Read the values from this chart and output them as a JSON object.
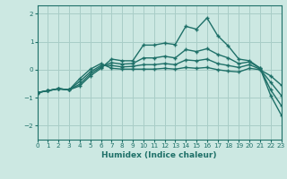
{
  "background_color": "#cce8e2",
  "grid_color": "#a8cdc7",
  "line_color": "#1e7068",
  "xlabel": "Humidex (Indice chaleur)",
  "xlim": [
    0,
    23
  ],
  "ylim": [
    -2.5,
    2.3
  ],
  "yticks": [
    -2,
    -1,
    0,
    1,
    2
  ],
  "xticks": [
    0,
    1,
    2,
    3,
    4,
    5,
    6,
    7,
    8,
    9,
    10,
    11,
    12,
    13,
    14,
    15,
    16,
    17,
    18,
    19,
    20,
    21,
    22,
    23
  ],
  "line1_y": [
    -0.82,
    -0.75,
    -0.68,
    -0.72,
    -0.58,
    -0.22,
    0.05,
    0.38,
    0.32,
    0.32,
    0.88,
    0.88,
    0.95,
    0.9,
    1.55,
    1.45,
    1.85,
    1.22,
    0.85,
    0.38,
    0.32,
    0.06,
    -0.92,
    -1.62
  ],
  "line2_y": [
    -0.82,
    -0.75,
    -0.68,
    -0.72,
    -0.52,
    -0.15,
    0.1,
    0.25,
    0.2,
    0.22,
    0.42,
    0.42,
    0.48,
    0.42,
    0.72,
    0.65,
    0.75,
    0.55,
    0.42,
    0.22,
    0.28,
    0.05,
    -0.72,
    -1.28
  ],
  "line3_y": [
    -0.82,
    -0.75,
    -0.68,
    -0.72,
    -0.42,
    -0.08,
    0.15,
    0.15,
    0.1,
    0.12,
    0.18,
    0.18,
    0.22,
    0.18,
    0.35,
    0.32,
    0.38,
    0.22,
    0.15,
    0.08,
    0.18,
    0.02,
    -0.45,
    -0.92
  ],
  "line4_y": [
    -0.82,
    -0.75,
    -0.68,
    -0.72,
    -0.32,
    0.02,
    0.22,
    0.05,
    0.02,
    0.02,
    0.02,
    0.02,
    0.05,
    0.02,
    0.08,
    0.05,
    0.08,
    0.0,
    -0.05,
    -0.08,
    0.05,
    0.0,
    -0.22,
    -0.55
  ]
}
